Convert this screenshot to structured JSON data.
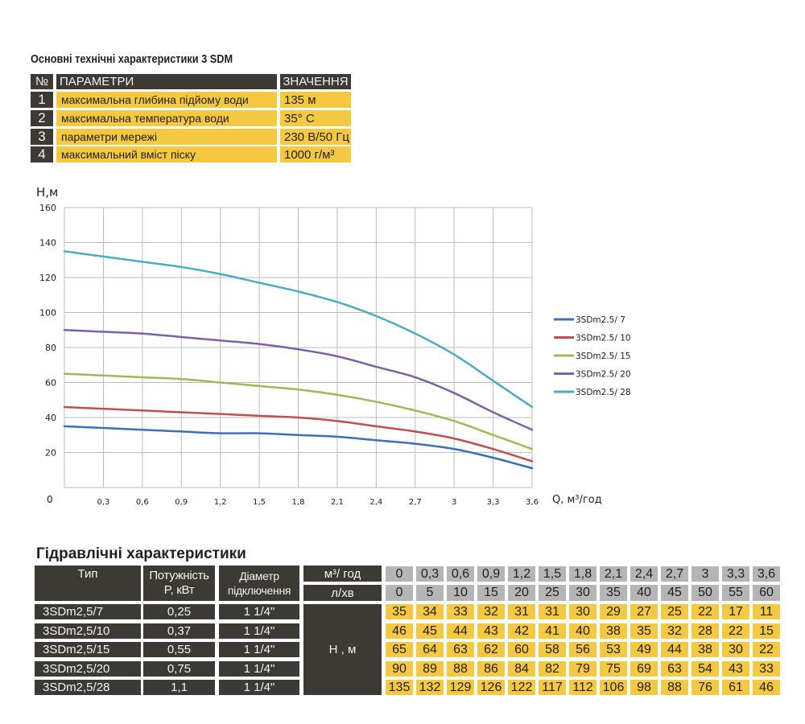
{
  "spec_table": {
    "title": "Основні технічні характеристики 3 SDM",
    "headers": [
      "№",
      "ПАРАМЕТРИ",
      "ЗНАЧЕННЯ"
    ],
    "rows": [
      {
        "num": "1",
        "param": "максимальна глибина підйому води",
        "value": "135 м"
      },
      {
        "num": "2",
        "param": "максимальна температура води",
        "value": "35° C"
      },
      {
        "num": "3",
        "param": "параметри мережі",
        "value": "230 В/50 Гц"
      },
      {
        "num": "4",
        "param": "максимальний вміст піску",
        "value": "1000 г/м³"
      }
    ]
  },
  "colors": {
    "dark": "#3d3935",
    "yellow": "#f5c842",
    "gray": "#b5b5b5"
  },
  "chart_data": {
    "type": "line",
    "ylabel": "H,м",
    "xlabel": "Q,  м³/год",
    "origin_label": "0",
    "x": [
      0,
      0.3,
      0.6,
      0.9,
      1.2,
      1.5,
      1.8,
      2.1,
      2.4,
      2.7,
      3,
      3.3,
      3.6
    ],
    "x_tick_labels": [
      "0,3",
      "0,6",
      "0,9",
      "1,2",
      "1,5",
      "1,8",
      "2,1",
      "2,4",
      "2,7",
      "3",
      "3,3",
      "3,6"
    ],
    "y_tick_labels": [
      "20",
      "40",
      "60",
      "80",
      "100",
      "120",
      "140",
      "160"
    ],
    "xlim": [
      0,
      3.6
    ],
    "ylim": [
      0,
      160
    ],
    "grid": true,
    "legend_placement": "right",
    "series": [
      {
        "name": "3SDm2.5/ 7",
        "color": "#3f6fb8",
        "values": [
          35,
          34,
          33,
          32,
          31,
          31,
          30,
          29,
          27,
          25,
          22,
          17,
          11
        ]
      },
      {
        "name": "3SDm2.5/ 10",
        "color": "#c0504d",
        "values": [
          46,
          45,
          44,
          43,
          42,
          41,
          40,
          38,
          35,
          32,
          28,
          22,
          15
        ]
      },
      {
        "name": "3SDm2.5/ 15",
        "color": "#9bbb59",
        "values": [
          65,
          64,
          63,
          62,
          60,
          58,
          56,
          53,
          49,
          44,
          38,
          30,
          22
        ]
      },
      {
        "name": "3SDm2.5/ 20",
        "color": "#7f60a8",
        "values": [
          90,
          89,
          88,
          86,
          84,
          82,
          79,
          75,
          69,
          63,
          54,
          43,
          33
        ]
      },
      {
        "name": "3SDm2.5/ 28",
        "color": "#4bacc6",
        "values": [
          135,
          132,
          129,
          126,
          122,
          117,
          112,
          106,
          98,
          88,
          76,
          61,
          46
        ]
      }
    ]
  },
  "hydraulic_table": {
    "title": "Гідравлічні характеристики",
    "headers": {
      "type": "Тип",
      "power": "Потужність P, кВт",
      "diameter": "Діаметр підключення",
      "unit_m3": "м³/ год",
      "unit_lmin": "л/хв",
      "head": "H , м"
    },
    "flow_m3h": [
      "0",
      "0,3",
      "0,6",
      "0,9",
      "1,2",
      "1,5",
      "1,8",
      "2,1",
      "2,4",
      "2,7",
      "3",
      "3,3",
      "3,6"
    ],
    "flow_lmin": [
      "0",
      "5",
      "10",
      "15",
      "20",
      "25",
      "30",
      "35",
      "40",
      "45",
      "50",
      "55",
      "60"
    ],
    "rows": [
      {
        "type": "3SDm2,5/7",
        "power": "0,25",
        "diameter": "1 1/4\"",
        "head": [
          "35",
          "34",
          "33",
          "32",
          "31",
          "31",
          "30",
          "29",
          "27",
          "25",
          "22",
          "17",
          "11"
        ]
      },
      {
        "type": "3SDm2,5/10",
        "power": "0,37",
        "diameter": "1 1/4\"",
        "head": [
          "46",
          "45",
          "44",
          "43",
          "42",
          "41",
          "40",
          "38",
          "35",
          "32",
          "28",
          "22",
          "15"
        ]
      },
      {
        "type": "3SDm2,5/15",
        "power": "0,55",
        "diameter": "1 1/4\"",
        "head": [
          "65",
          "64",
          "63",
          "62",
          "60",
          "58",
          "56",
          "53",
          "49",
          "44",
          "38",
          "30",
          "22"
        ]
      },
      {
        "type": "3SDm2,5/20",
        "power": "0,75",
        "diameter": "1 1/4\"",
        "head": [
          "90",
          "89",
          "88",
          "86",
          "84",
          "82",
          "79",
          "75",
          "69",
          "63",
          "54",
          "43",
          "33"
        ]
      },
      {
        "type": "3SDm2,5/28",
        "power": "1,1",
        "diameter": "1 1/4\"",
        "head": [
          "135",
          "132",
          "129",
          "126",
          "122",
          "117",
          "112",
          "106",
          "98",
          "88",
          "76",
          "61",
          "46"
        ]
      }
    ]
  }
}
